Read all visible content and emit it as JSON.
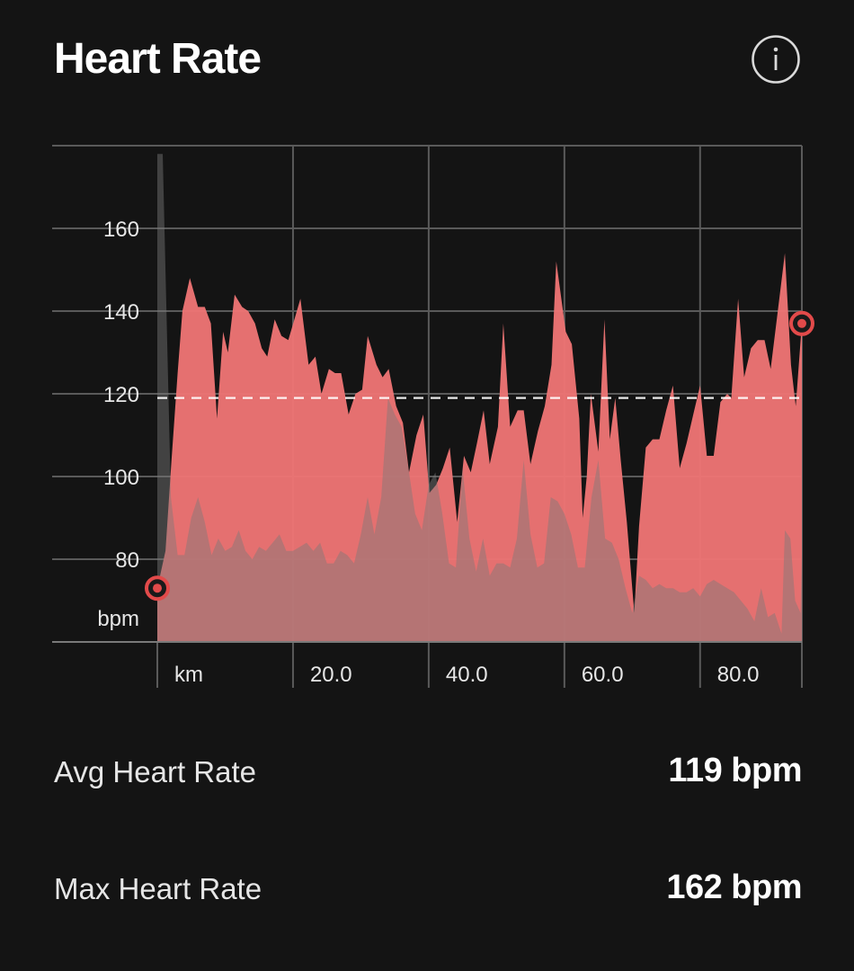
{
  "header": {
    "title": "Heart Rate",
    "info_icon": "info-circle-icon"
  },
  "colors": {
    "background": "#141414",
    "heart_rate_fill": "#f07575",
    "elevation_fill": "#9a6666",
    "marker": "#e24a4a",
    "grid": "#5a5a5a",
    "average_line": "#ffffff"
  },
  "chart_data": {
    "type": "area",
    "ylabel": "bpm",
    "xlabel": "km",
    "xlim": [
      0,
      95
    ],
    "ylim": [
      60,
      180
    ],
    "y_ticks": [
      80,
      100,
      120,
      140,
      160
    ],
    "y_tick_labels": [
      "80",
      "100",
      "120",
      "140",
      "160"
    ],
    "x_ticks": [
      20,
      40,
      60,
      80
    ],
    "x_tick_labels": [
      "20.0",
      "40.0",
      "60.0",
      "80.0"
    ],
    "grid": true,
    "average_line": 119,
    "series": [
      {
        "values": [
          {
            "x": 0,
            "y": 73
          },
          {
            "x": 1.2,
            "y": 82
          },
          {
            "x": 2.1,
            "y": 104
          },
          {
            "x": 3,
            "y": 125
          },
          {
            "x": 3.7,
            "y": 140
          },
          {
            "x": 4.8,
            "y": 148
          },
          {
            "x": 6,
            "y": 141
          },
          {
            "x": 7,
            "y": 141
          },
          {
            "x": 7.9,
            "y": 137
          },
          {
            "x": 8.8,
            "y": 114
          },
          {
            "x": 9.7,
            "y": 135
          },
          {
            "x": 10.4,
            "y": 130
          },
          {
            "x": 11.4,
            "y": 144
          },
          {
            "x": 12.5,
            "y": 141
          },
          {
            "x": 13.4,
            "y": 140
          },
          {
            "x": 14.4,
            "y": 137
          },
          {
            "x": 15.4,
            "y": 131
          },
          {
            "x": 16.2,
            "y": 129
          },
          {
            "x": 17.3,
            "y": 138
          },
          {
            "x": 18.3,
            "y": 134
          },
          {
            "x": 19.3,
            "y": 133
          },
          {
            "x": 20.2,
            "y": 138
          },
          {
            "x": 21.1,
            "y": 143
          },
          {
            "x": 22.3,
            "y": 127
          },
          {
            "x": 23.3,
            "y": 129
          },
          {
            "x": 24.2,
            "y": 120
          },
          {
            "x": 25.3,
            "y": 126
          },
          {
            "x": 26.2,
            "y": 125
          },
          {
            "x": 27.1,
            "y": 125
          },
          {
            "x": 28.2,
            "y": 115
          },
          {
            "x": 29.2,
            "y": 120
          },
          {
            "x": 30.2,
            "y": 121
          },
          {
            "x": 31,
            "y": 134
          },
          {
            "x": 32.3,
            "y": 127
          },
          {
            "x": 33.2,
            "y": 124
          },
          {
            "x": 34.1,
            "y": 126
          },
          {
            "x": 35.2,
            "y": 117
          },
          {
            "x": 36.2,
            "y": 113
          },
          {
            "x": 37.1,
            "y": 101
          },
          {
            "x": 38.2,
            "y": 110
          },
          {
            "x": 39.2,
            "y": 115
          },
          {
            "x": 40.1,
            "y": 96
          },
          {
            "x": 41.1,
            "y": 98
          },
          {
            "x": 42.1,
            "y": 102
          },
          {
            "x": 43.1,
            "y": 107
          },
          {
            "x": 44.2,
            "y": 89
          },
          {
            "x": 45.2,
            "y": 105
          },
          {
            "x": 46.2,
            "y": 101
          },
          {
            "x": 47.1,
            "y": 108
          },
          {
            "x": 48.1,
            "y": 116
          },
          {
            "x": 49,
            "y": 103
          },
          {
            "x": 50.2,
            "y": 112
          },
          {
            "x": 51,
            "y": 137
          },
          {
            "x": 52,
            "y": 112
          },
          {
            "x": 53.1,
            "y": 116
          },
          {
            "x": 54,
            "y": 116
          },
          {
            "x": 55,
            "y": 103
          },
          {
            "x": 56.1,
            "y": 111
          },
          {
            "x": 57.1,
            "y": 117
          },
          {
            "x": 58.1,
            "y": 127
          },
          {
            "x": 58.8,
            "y": 152
          },
          {
            "x": 60.2,
            "y": 135
          },
          {
            "x": 61.1,
            "y": 132
          },
          {
            "x": 62.2,
            "y": 114
          },
          {
            "x": 62.7,
            "y": 90
          },
          {
            "x": 63.3,
            "y": 100
          },
          {
            "x": 63.9,
            "y": 120
          },
          {
            "x": 65,
            "y": 106
          },
          {
            "x": 65.9,
            "y": 138
          },
          {
            "x": 66.7,
            "y": 109
          },
          {
            "x": 67.5,
            "y": 119
          },
          {
            "x": 68.3,
            "y": 104
          },
          {
            "x": 69.2,
            "y": 89
          },
          {
            "x": 70.3,
            "y": 67
          },
          {
            "x": 71,
            "y": 88
          },
          {
            "x": 72,
            "y": 107
          },
          {
            "x": 73,
            "y": 109
          },
          {
            "x": 74,
            "y": 109
          },
          {
            "x": 75,
            "y": 116
          },
          {
            "x": 76,
            "y": 122
          },
          {
            "x": 77,
            "y": 102
          },
          {
            "x": 78,
            "y": 108
          },
          {
            "x": 79,
            "y": 115
          },
          {
            "x": 80,
            "y": 122
          },
          {
            "x": 81,
            "y": 105
          },
          {
            "x": 82,
            "y": 105
          },
          {
            "x": 83,
            "y": 118
          },
          {
            "x": 84,
            "y": 120
          },
          {
            "x": 84.6,
            "y": 119
          },
          {
            "x": 85.6,
            "y": 143
          },
          {
            "x": 86.5,
            "y": 124
          },
          {
            "x": 87.5,
            "y": 131
          },
          {
            "x": 88.5,
            "y": 133
          },
          {
            "x": 89.5,
            "y": 133
          },
          {
            "x": 90.4,
            "y": 126
          },
          {
            "x": 91.3,
            "y": 138
          },
          {
            "x": 92.5,
            "y": 154
          },
          {
            "x": 93.4,
            "y": 127
          },
          {
            "x": 94.1,
            "y": 117
          },
          {
            "x": 95,
            "y": 137
          }
        ]
      }
    ],
    "background_profile": [
      {
        "x": 0,
        "y": 178
      },
      {
        "x": 0.8,
        "y": 178
      },
      {
        "x": 2,
        "y": 95
      },
      {
        "x": 3,
        "y": 81
      },
      {
        "x": 4,
        "y": 81
      },
      {
        "x": 5,
        "y": 90
      },
      {
        "x": 6,
        "y": 95
      },
      {
        "x": 7,
        "y": 89
      },
      {
        "x": 8,
        "y": 81
      },
      {
        "x": 9,
        "y": 85
      },
      {
        "x": 10,
        "y": 82
      },
      {
        "x": 11,
        "y": 83
      },
      {
        "x": 12,
        "y": 87
      },
      {
        "x": 13,
        "y": 82
      },
      {
        "x": 14,
        "y": 80
      },
      {
        "x": 15,
        "y": 83
      },
      {
        "x": 16,
        "y": 82
      },
      {
        "x": 17,
        "y": 84
      },
      {
        "x": 18,
        "y": 86
      },
      {
        "x": 19,
        "y": 82
      },
      {
        "x": 20,
        "y": 82
      },
      {
        "x": 21,
        "y": 83
      },
      {
        "x": 22,
        "y": 84
      },
      {
        "x": 23,
        "y": 82
      },
      {
        "x": 24,
        "y": 84
      },
      {
        "x": 25,
        "y": 79
      },
      {
        "x": 26,
        "y": 79
      },
      {
        "x": 27,
        "y": 82
      },
      {
        "x": 28,
        "y": 81
      },
      {
        "x": 29,
        "y": 79
      },
      {
        "x": 30,
        "y": 86
      },
      {
        "x": 31,
        "y": 95
      },
      {
        "x": 32,
        "y": 86
      },
      {
        "x": 33,
        "y": 95
      },
      {
        "x": 34,
        "y": 119
      },
      {
        "x": 35,
        "y": 115
      },
      {
        "x": 36,
        "y": 112
      },
      {
        "x": 37,
        "y": 102
      },
      {
        "x": 38,
        "y": 91
      },
      {
        "x": 39,
        "y": 87
      },
      {
        "x": 40,
        "y": 98
      },
      {
        "x": 41,
        "y": 101
      },
      {
        "x": 42,
        "y": 91
      },
      {
        "x": 43,
        "y": 79
      },
      {
        "x": 44,
        "y": 78
      },
      {
        "x": 45,
        "y": 102
      },
      {
        "x": 46,
        "y": 85
      },
      {
        "x": 47,
        "y": 77
      },
      {
        "x": 48,
        "y": 85
      },
      {
        "x": 49,
        "y": 76
      },
      {
        "x": 50,
        "y": 79
      },
      {
        "x": 51,
        "y": 79
      },
      {
        "x": 52,
        "y": 78
      },
      {
        "x": 53,
        "y": 85
      },
      {
        "x": 54,
        "y": 104
      },
      {
        "x": 55,
        "y": 86
      },
      {
        "x": 56,
        "y": 78
      },
      {
        "x": 57,
        "y": 79
      },
      {
        "x": 58,
        "y": 95
      },
      {
        "x": 59,
        "y": 94
      },
      {
        "x": 60,
        "y": 91
      },
      {
        "x": 61,
        "y": 86
      },
      {
        "x": 62,
        "y": 78
      },
      {
        "x": 63,
        "y": 78
      },
      {
        "x": 64,
        "y": 95
      },
      {
        "x": 65,
        "y": 104
      },
      {
        "x": 66,
        "y": 85
      },
      {
        "x": 67,
        "y": 84
      },
      {
        "x": 68,
        "y": 80
      },
      {
        "x": 69,
        "y": 73
      },
      {
        "x": 70,
        "y": 67
      },
      {
        "x": 71,
        "y": 76
      },
      {
        "x": 72,
        "y": 75
      },
      {
        "x": 73,
        "y": 73
      },
      {
        "x": 74,
        "y": 74
      },
      {
        "x": 75,
        "y": 73
      },
      {
        "x": 76,
        "y": 73
      },
      {
        "x": 77,
        "y": 72
      },
      {
        "x": 78,
        "y": 72
      },
      {
        "x": 79,
        "y": 73
      },
      {
        "x": 80,
        "y": 71
      },
      {
        "x": 81,
        "y": 74
      },
      {
        "x": 82,
        "y": 75
      },
      {
        "x": 83,
        "y": 74
      },
      {
        "x": 84,
        "y": 73
      },
      {
        "x": 85,
        "y": 72
      },
      {
        "x": 86,
        "y": 70
      },
      {
        "x": 87,
        "y": 68
      },
      {
        "x": 88,
        "y": 65
      },
      {
        "x": 89,
        "y": 73
      },
      {
        "x": 90,
        "y": 66
      },
      {
        "x": 91,
        "y": 67
      },
      {
        "x": 92,
        "y": 62
      },
      {
        "x": 92.5,
        "y": 87
      },
      {
        "x": 93.3,
        "y": 85
      },
      {
        "x": 94,
        "y": 70
      },
      {
        "x": 94.8,
        "y": 67
      },
      {
        "x": 95,
        "y": 81
      }
    ],
    "markers": [
      {
        "x": 0,
        "y": 73
      },
      {
        "x": 95,
        "y": 137
      }
    ]
  },
  "stats": [
    {
      "label": "Avg Heart Rate",
      "value": "119 bpm"
    },
    {
      "label": "Max Heart Rate",
      "value": "162 bpm"
    }
  ]
}
